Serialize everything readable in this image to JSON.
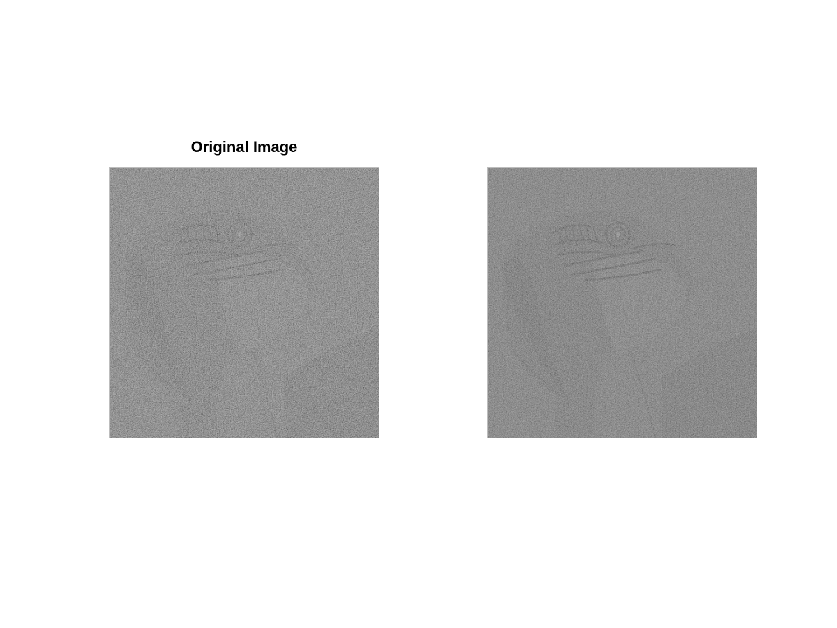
{
  "figure": {
    "panels": [
      {
        "title": "Original Image",
        "content": "grayscale-noisy-parrot-photo",
        "base_gray": "#686868"
      },
      {
        "title": "",
        "content": "grayscale-noisy-parrot-photo-filtered",
        "base_gray": "#6b6b6b"
      }
    ]
  }
}
